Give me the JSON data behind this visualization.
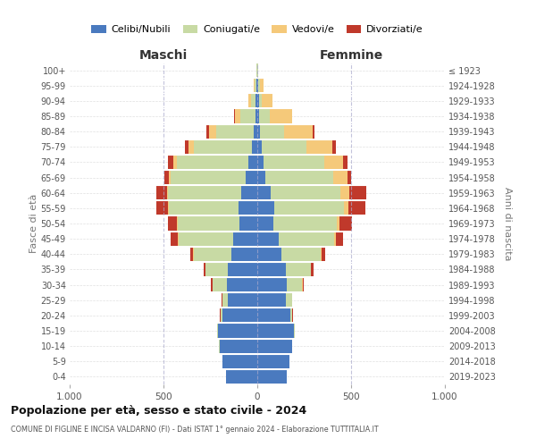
{
  "age_groups": [
    "0-4",
    "5-9",
    "10-14",
    "15-19",
    "20-24",
    "25-29",
    "30-34",
    "35-39",
    "40-44",
    "45-49",
    "50-54",
    "55-59",
    "60-64",
    "65-69",
    "70-74",
    "75-79",
    "80-84",
    "85-89",
    "90-94",
    "95-99",
    "100+"
  ],
  "birth_years": [
    "2019-2023",
    "2014-2018",
    "2009-2013",
    "2004-2008",
    "1999-2003",
    "1994-1998",
    "1989-1993",
    "1984-1988",
    "1979-1983",
    "1974-1978",
    "1969-1973",
    "1964-1968",
    "1959-1963",
    "1954-1958",
    "1949-1953",
    "1944-1948",
    "1939-1943",
    "1934-1938",
    "1929-1933",
    "1924-1928",
    "≤ 1923"
  ],
  "males": {
    "celibi": [
      165,
      185,
      200,
      210,
      185,
      155,
      160,
      155,
      140,
      130,
      95,
      100,
      85,
      60,
      50,
      30,
      20,
      10,
      8,
      4,
      2
    ],
    "coniugati": [
      1,
      2,
      3,
      5,
      10,
      30,
      80,
      120,
      200,
      290,
      330,
      370,
      390,
      400,
      380,
      310,
      200,
      80,
      25,
      10,
      3
    ],
    "vedovi": [
      0,
      0,
      0,
      0,
      0,
      0,
      0,
      1,
      1,
      2,
      3,
      5,
      8,
      12,
      20,
      25,
      35,
      30,
      15,
      5,
      1
    ],
    "divorziati": [
      0,
      0,
      0,
      1,
      3,
      4,
      8,
      12,
      18,
      40,
      50,
      65,
      55,
      22,
      25,
      20,
      15,
      3,
      2,
      1,
      0
    ]
  },
  "females": {
    "nubili": [
      155,
      170,
      185,
      195,
      175,
      150,
      155,
      150,
      130,
      115,
      85,
      90,
      70,
      45,
      35,
      22,
      15,
      10,
      8,
      4,
      2
    ],
    "coniugate": [
      1,
      1,
      3,
      5,
      12,
      35,
      85,
      135,
      210,
      295,
      340,
      370,
      375,
      360,
      320,
      240,
      130,
      55,
      18,
      8,
      3
    ],
    "vedove": [
      0,
      0,
      0,
      0,
      0,
      0,
      1,
      2,
      3,
      8,
      12,
      25,
      45,
      75,
      100,
      140,
      150,
      120,
      55,
      20,
      2
    ],
    "divorziate": [
      0,
      0,
      0,
      1,
      2,
      3,
      8,
      12,
      18,
      40,
      70,
      90,
      90,
      22,
      25,
      18,
      10,
      3,
      2,
      1,
      0
    ]
  },
  "colors": {
    "celibi_nubili": "#4a7abf",
    "coniugati_e": "#c8daa4",
    "vedovi_e": "#f5c97a",
    "divorziati_e": "#c0392b"
  },
  "xlim": 1000,
  "title": "Popolazione per età, sesso e stato civile - 2024",
  "subtitle": "COMUNE DI FIGLINE E INCISA VALDARNO (FI) - Dati ISTAT 1° gennaio 2024 - Elaborazione TUTTITALIA.IT",
  "xlabel_left": "Maschi",
  "xlabel_right": "Femmine",
  "ylabel_left": "Fasce di età",
  "ylabel_right": "Anni di nascita",
  "legend_labels": [
    "Celibi/Nubili",
    "Coniugati/e",
    "Vedovi/e",
    "Divorziati/e"
  ],
  "bg_color": "#ffffff",
  "grid_color": "#cccccc"
}
